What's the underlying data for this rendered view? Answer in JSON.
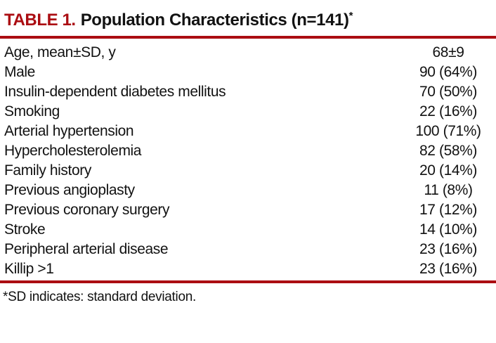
{
  "colors": {
    "accent_red": "#AB0D12",
    "text_black": "#121212"
  },
  "table": {
    "label": "TABLE 1.",
    "title": "Population Characteristics (n=141)",
    "title_superscript": "*",
    "rows": [
      {
        "label": "Age, mean±SD, y",
        "value": "68±9"
      },
      {
        "label": "Male",
        "value": "90 (64%)"
      },
      {
        "label": "Insulin-dependent diabetes mellitus",
        "value": "70 (50%)"
      },
      {
        "label": "Smoking",
        "value": "22 (16%)"
      },
      {
        "label": "Arterial hypertension",
        "value": "100 (71%)"
      },
      {
        "label": "Hypercholesterolemia",
        "value": "82 (58%)"
      },
      {
        "label": "Family history",
        "value": "20 (14%)"
      },
      {
        "label": "Previous angioplasty",
        "value": "11 (8%)"
      },
      {
        "label": "Previous coronary surgery",
        "value": "17 (12%)"
      },
      {
        "label": "Stroke",
        "value": "14 (10%)"
      },
      {
        "label": "Peripheral arterial disease",
        "value": "23 (16%)"
      },
      {
        "label": "Killip >1",
        "value": "23 (16%)"
      }
    ],
    "footnote": "*SD indicates: standard deviation."
  }
}
